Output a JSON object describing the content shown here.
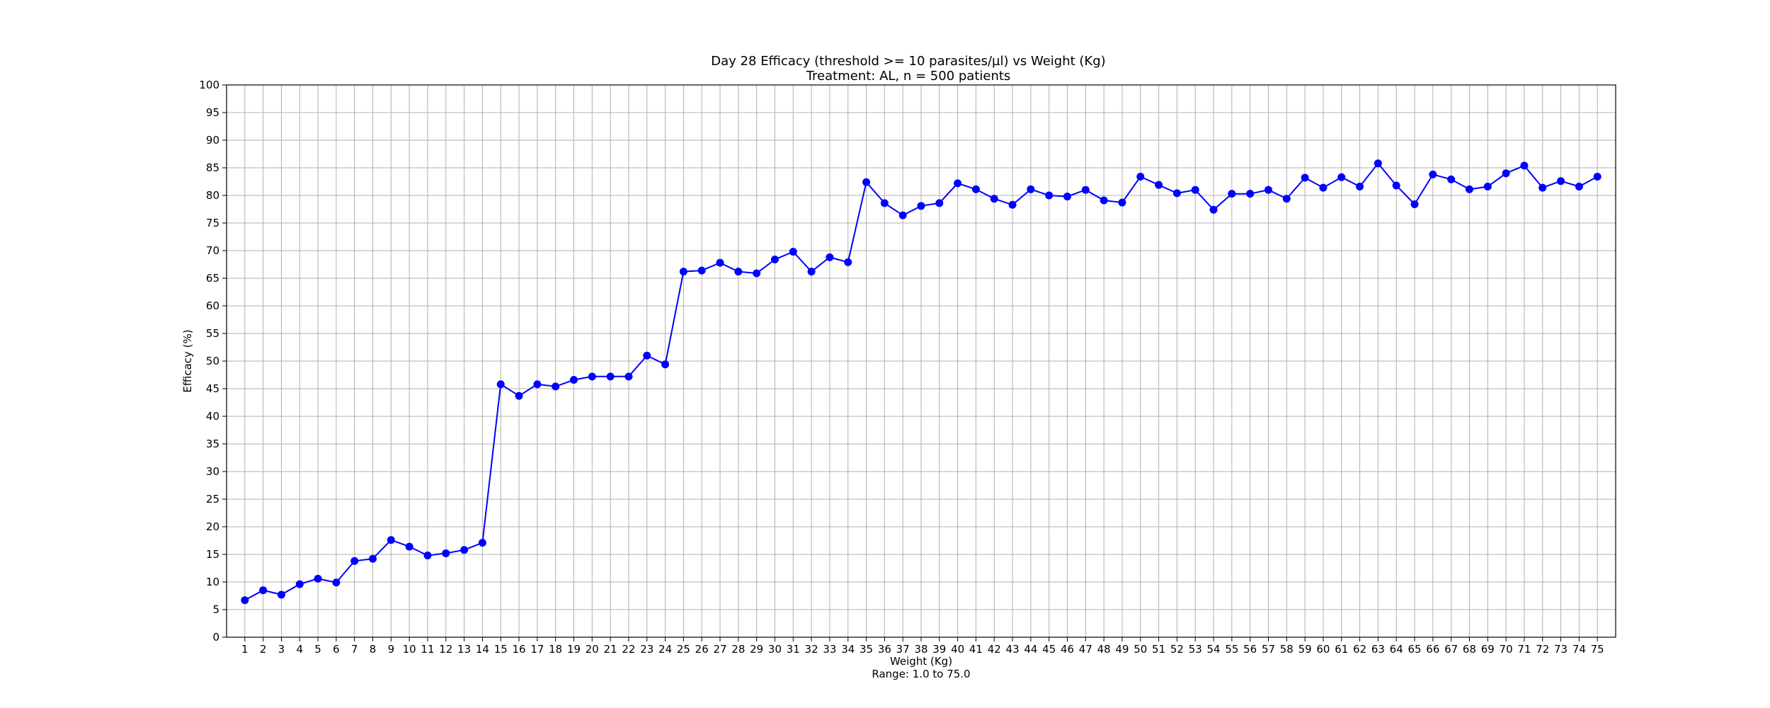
{
  "chart_data": {
    "type": "line",
    "title": "Day 28 Efficacy (threshold >= 10 parasites/µl) vs Weight (Kg)",
    "subtitle": "Treatment: AL, n = 500 patients",
    "xlabel": "Weight (Kg)",
    "xlabel_note": "Range: 1.0 to 75.0",
    "ylabel": "Efficacy (%)",
    "xlim": [
      0,
      76
    ],
    "ylim": [
      0,
      100
    ],
    "x_ticks": [
      1,
      2,
      3,
      4,
      5,
      6,
      7,
      8,
      9,
      10,
      11,
      12,
      13,
      14,
      15,
      16,
      17,
      18,
      19,
      20,
      21,
      22,
      23,
      24,
      25,
      26,
      27,
      28,
      29,
      30,
      31,
      32,
      33,
      34,
      35,
      36,
      37,
      38,
      39,
      40,
      41,
      42,
      43,
      44,
      45,
      46,
      47,
      48,
      49,
      50,
      51,
      52,
      53,
      54,
      55,
      56,
      57,
      58,
      59,
      60,
      61,
      62,
      63,
      64,
      65,
      66,
      67,
      68,
      69,
      70,
      71,
      72,
      73,
      74,
      75
    ],
    "y_ticks": [
      0,
      5,
      10,
      15,
      20,
      25,
      30,
      35,
      40,
      45,
      50,
      55,
      60,
      65,
      70,
      75,
      80,
      85,
      90,
      95,
      100
    ],
    "grid": true,
    "legend": "none",
    "series_color": "#0000ff",
    "x": [
      1,
      2,
      3,
      4,
      5,
      6,
      7,
      8,
      9,
      10,
      11,
      12,
      13,
      14,
      15,
      16,
      17,
      18,
      19,
      20,
      21,
      22,
      23,
      24,
      25,
      26,
      27,
      28,
      29,
      30,
      31,
      32,
      33,
      34,
      35,
      36,
      37,
      38,
      39,
      40,
      41,
      42,
      43,
      44,
      45,
      46,
      47,
      48,
      49,
      50,
      51,
      52,
      53,
      54,
      55,
      56,
      57,
      58,
      59,
      60,
      61,
      62,
      63,
      64,
      65,
      66,
      67,
      68,
      69,
      70,
      71,
      72,
      73,
      74,
      75
    ],
    "y": [
      6.7,
      8.5,
      7.7,
      9.6,
      10.6,
      9.9,
      13.8,
      14.2,
      17.6,
      16.4,
      14.8,
      15.2,
      15.8,
      17.1,
      45.8,
      43.7,
      45.8,
      45.4,
      46.6,
      47.2,
      47.2,
      47.2,
      51.0,
      49.4,
      66.2,
      66.4,
      67.8,
      66.2,
      65.9,
      68.4,
      69.8,
      66.2,
      68.8,
      67.9,
      82.4,
      78.6,
      76.4,
      78.1,
      78.6,
      82.2,
      81.1,
      79.4,
      78.3,
      81.1,
      80.0,
      79.8,
      81.0,
      79.1,
      78.7,
      83.4,
      81.9,
      80.4,
      81.0,
      77.4,
      80.3,
      80.3,
      81.0,
      79.4,
      83.2,
      81.4,
      83.3,
      81.6,
      85.8,
      81.8,
      78.4,
      83.8,
      82.9,
      81.1,
      81.6,
      84.0,
      85.4,
      81.4,
      82.6,
      81.6,
      83.4
    ]
  }
}
